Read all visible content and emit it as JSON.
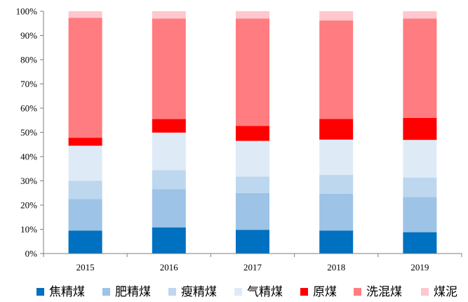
{
  "chart_data": {
    "type": "bar",
    "stacked": true,
    "percent": true,
    "categories": [
      "2015",
      "2016",
      "2017",
      "2018",
      "2019"
    ],
    "ylim": [
      0,
      100
    ],
    "yticks": [
      "0%",
      "10%",
      "20%",
      "30%",
      "40%",
      "50%",
      "60%",
      "70%",
      "80%",
      "90%",
      "100%"
    ],
    "grid": false,
    "legend_position": "bottom",
    "series": [
      {
        "name": "焦精煤",
        "color": "#0070C0",
        "values": [
          9.5,
          10.8,
          9.8,
          9.5,
          8.8
        ]
      },
      {
        "name": "肥精煤",
        "color": "#9DC3E6",
        "values": [
          13.0,
          15.8,
          15.2,
          15.2,
          14.5
        ]
      },
      {
        "name": "瘦精煤",
        "color": "#BDD7EE",
        "values": [
          7.5,
          7.8,
          6.8,
          7.8,
          8.0
        ]
      },
      {
        "name": "气精煤",
        "color": "#DEEBF7",
        "values": [
          14.5,
          15.5,
          14.7,
          14.5,
          15.6
        ]
      },
      {
        "name": "原煤",
        "color": "#FF0000",
        "values": [
          3.3,
          5.6,
          6.2,
          8.5,
          9.1
        ]
      },
      {
        "name": "洗混煤",
        "color": "#FF7C80",
        "values": [
          49.5,
          41.5,
          44.3,
          40.7,
          41.0
        ]
      },
      {
        "name": "煤泥",
        "color": "#FFC7CE",
        "values": [
          2.7,
          3.0,
          3.0,
          3.8,
          3.0
        ]
      }
    ]
  }
}
